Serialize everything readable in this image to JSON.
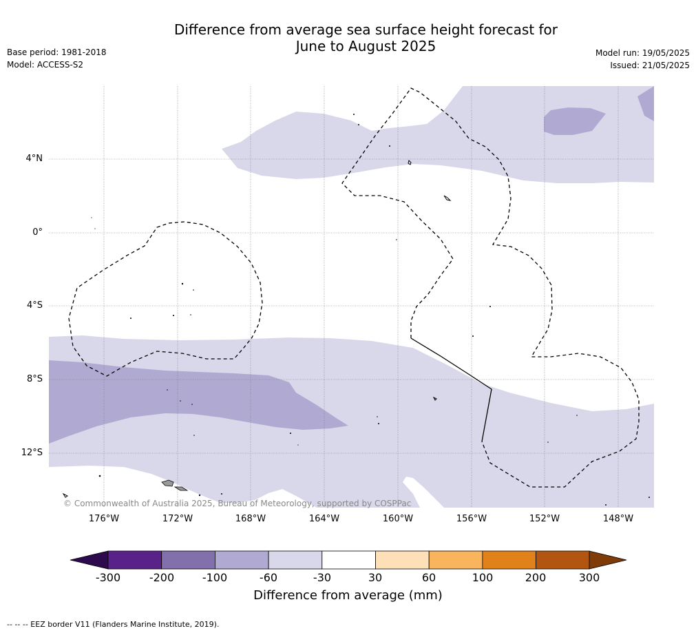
{
  "header": {
    "title_line1": "Difference from average sea surface height forecast for",
    "title_line2": "June to August 2025",
    "base_period": "Base period: 1981-2018",
    "model": "Model: ACCESS-S2",
    "model_run": "Model run: 19/05/2025",
    "issued": "Issued: 21/05/2025"
  },
  "map": {
    "lat_labels": [
      "4°N",
      "0°",
      "4°S",
      "8°S",
      "12°S"
    ],
    "lon_labels": [
      "176°W",
      "172°W",
      "168°W",
      "164°W",
      "160°W",
      "156°W",
      "152°W",
      "148°W"
    ],
    "copyright": "© Commonwealth of Australia 2025, Bureau of Meteorology, supported by COSPPac",
    "icons": [
      "eez-border-line",
      "island-outline"
    ]
  },
  "colorbar": {
    "label": "Difference from average (mm)",
    "ticks": [
      "-300",
      "-200",
      "-100",
      "-60",
      "-30",
      "30",
      "60",
      "100",
      "200",
      "300"
    ],
    "colors": [
      "#2d0a4e",
      "#582289",
      "#8170ac",
      "#b0aad2",
      "#d8d8ea",
      "#ffffff",
      "#fee0b8",
      "#f9b45e",
      "#e0811a",
      "#b25510",
      "#7f3b08"
    ]
  },
  "footer": {
    "legend": "--  --  -- EEZ border V11 (Flanders Marine Institute, 2019)."
  }
}
